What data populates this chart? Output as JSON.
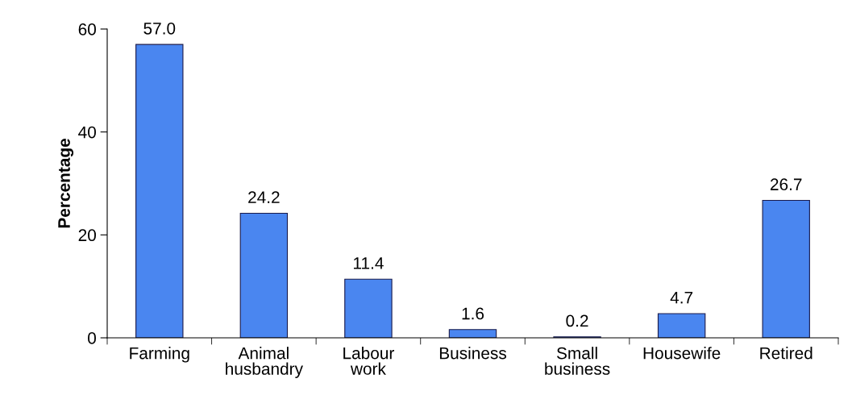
{
  "chart_data": {
    "type": "bar",
    "ylabel": "Percentage",
    "categories": [
      "Farming",
      "Animal\nhusbandry",
      "Labour\nwork",
      "Business",
      "Small\nbusiness",
      "Housewife",
      "Retired"
    ],
    "values": [
      57.0,
      24.2,
      11.4,
      1.6,
      0.2,
      4.7,
      26.7
    ],
    "value_labels": [
      "57.0",
      "24.2",
      "11.4",
      "1.6",
      "0.2",
      "4.7",
      "26.7"
    ],
    "color": "#4a86f0",
    "ylim": [
      0,
      60
    ],
    "yticks": [
      0,
      20,
      40,
      60
    ],
    "grid": false,
    "legend": false
  }
}
